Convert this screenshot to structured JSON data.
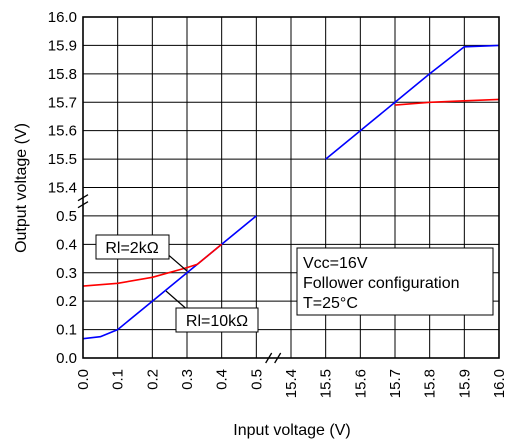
{
  "chart_data": {
    "type": "line",
    "xlabel": "Input voltage (V)",
    "ylabel": "Output voltage (V)",
    "grid": true,
    "broken_axes": true,
    "x_ticks": [
      "0.0",
      "0.1",
      "0.2",
      "0.3",
      "0.4",
      "0.5",
      "15.4",
      "15.5",
      "15.6",
      "15.7",
      "15.8",
      "15.9",
      "16.0"
    ],
    "y_ticks": [
      "0.0",
      "0.1",
      "0.2",
      "0.3",
      "0.4",
      "0.5",
      "15.4",
      "15.5",
      "15.6",
      "15.7",
      "15.8",
      "15.9",
      "16.0"
    ],
    "series": [
      {
        "name": "Rl=10kΩ",
        "color": "#0000ff",
        "points": [
          [
            "0.0",
            0.068
          ],
          [
            "0.05",
            0.075
          ],
          [
            "0.1",
            0.1
          ],
          [
            "0.2",
            0.2
          ],
          [
            "0.3",
            0.3
          ],
          [
            "0.4",
            0.4
          ],
          [
            "0.5",
            0.5
          ],
          [
            "15.5",
            15.5
          ],
          [
            "15.6",
            15.6
          ],
          [
            "15.7",
            15.7
          ],
          [
            "15.8",
            15.8
          ],
          [
            "15.9",
            15.895
          ],
          [
            "16.0",
            15.9
          ]
        ]
      },
      {
        "name": "Rl=2kΩ",
        "color": "#ff0000",
        "points": [
          [
            "0.0",
            0.253
          ],
          [
            "0.1",
            0.263
          ],
          [
            "0.2",
            0.284
          ],
          [
            "0.3",
            0.318
          ],
          [
            "0.33",
            0.33
          ],
          [
            "0.4",
            0.4
          ],
          [
            "15.7",
            15.69
          ],
          [
            "15.8",
            15.7
          ],
          [
            "15.9",
            15.705
          ],
          [
            "16.0",
            15.71
          ]
        ]
      }
    ],
    "annotations": [
      {
        "label": "Rl=2kΩ",
        "series": "Rl=2kΩ"
      },
      {
        "label": "Rl=10kΩ",
        "series": "Rl=10kΩ"
      }
    ],
    "conditions": [
      "Vcc=16V",
      "Follower configuration",
      "T=25°C"
    ]
  }
}
